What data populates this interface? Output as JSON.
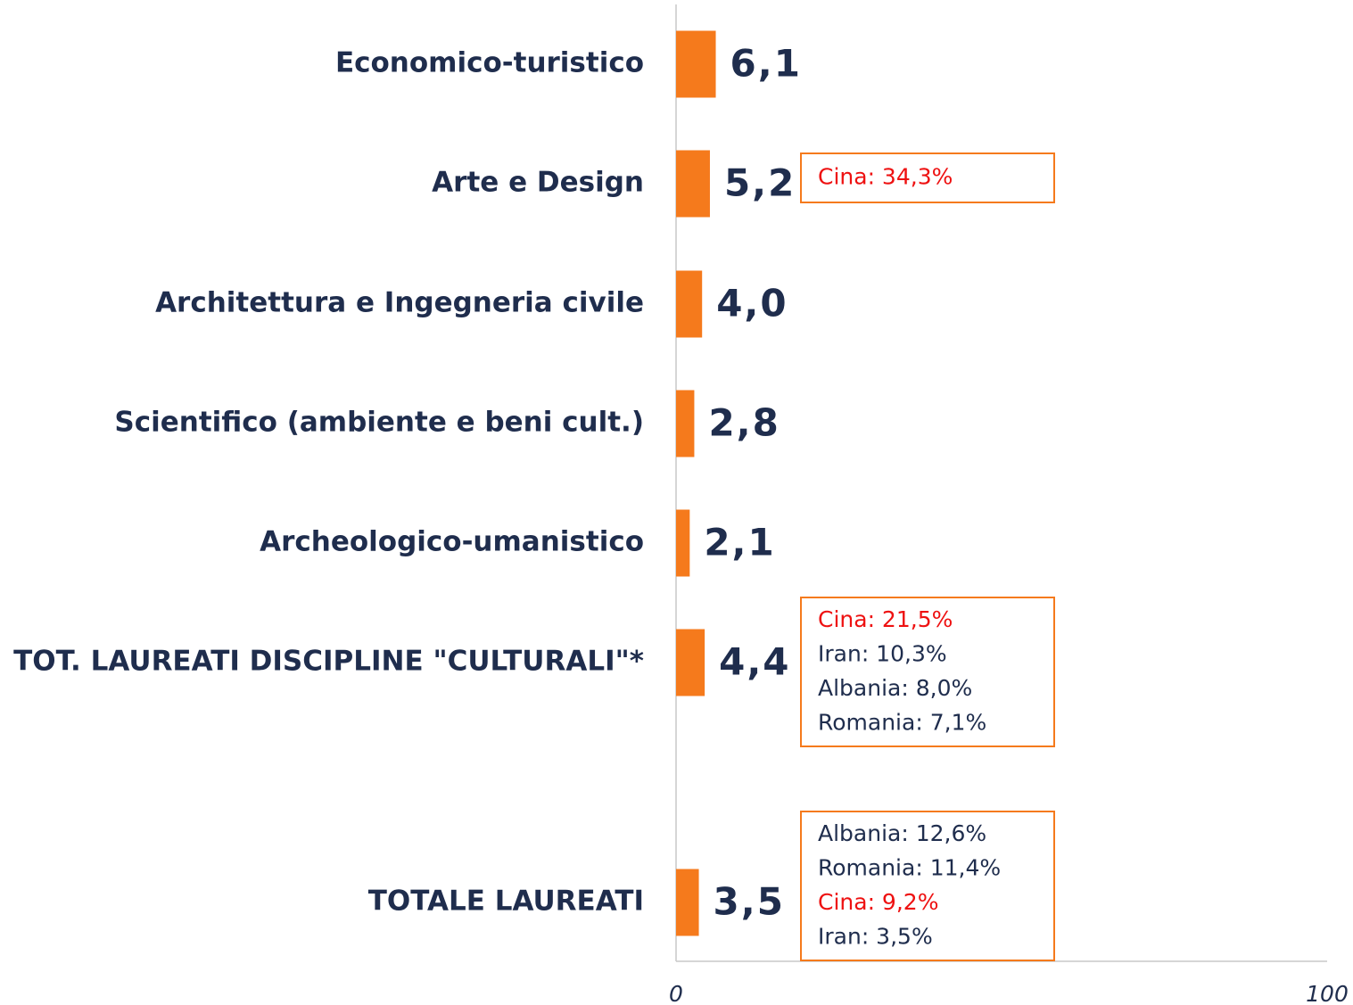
{
  "chart_data": {
    "type": "barh",
    "categories": [
      "Economico-turistico",
      "Arte e Design",
      "Architettura e Ingegneria civile",
      "Scientifico (ambiente e beni cult.)",
      "Archeologico-umanistico",
      "TOT. LAUREATI DISCIPLINE \"CULTURALI\"*",
      "TOTALE LAUREATI"
    ],
    "values": [
      6.1,
      5.2,
      4.0,
      2.8,
      2.1,
      4.4,
      3.5
    ],
    "value_labels": [
      "6,1",
      "5,2",
      "4,0",
      "2,8",
      "2,1",
      "4,4",
      "3,5"
    ],
    "color": "#f57a1c",
    "xlim": [
      0,
      100
    ],
    "xticks": [
      0,
      100
    ],
    "annotations": [
      {
        "lines": [
          {
            "text": "Cina: 34,3%",
            "color": "#ee1111"
          }
        ]
      },
      {
        "lines": [
          {
            "text": "Cina: 21,5%",
            "color": "#ee1111"
          },
          {
            "text": "Iran: 10,3%",
            "color": "#1f2d4d"
          },
          {
            "text": "Albania: 8,0%",
            "color": "#1f2d4d"
          },
          {
            "text": "Romania: 7,1%",
            "color": "#1f2d4d"
          }
        ]
      },
      {
        "lines": [
          {
            "text": "Albania: 12,6%",
            "color": "#1f2d4d"
          },
          {
            "text": "Romania: 11,4%",
            "color": "#1f2d4d"
          },
          {
            "text": "Cina: 9,2%",
            "color": "#ee1111"
          },
          {
            "text": "Iran: 3,5%",
            "color": "#1f2d4d"
          }
        ]
      }
    ]
  }
}
